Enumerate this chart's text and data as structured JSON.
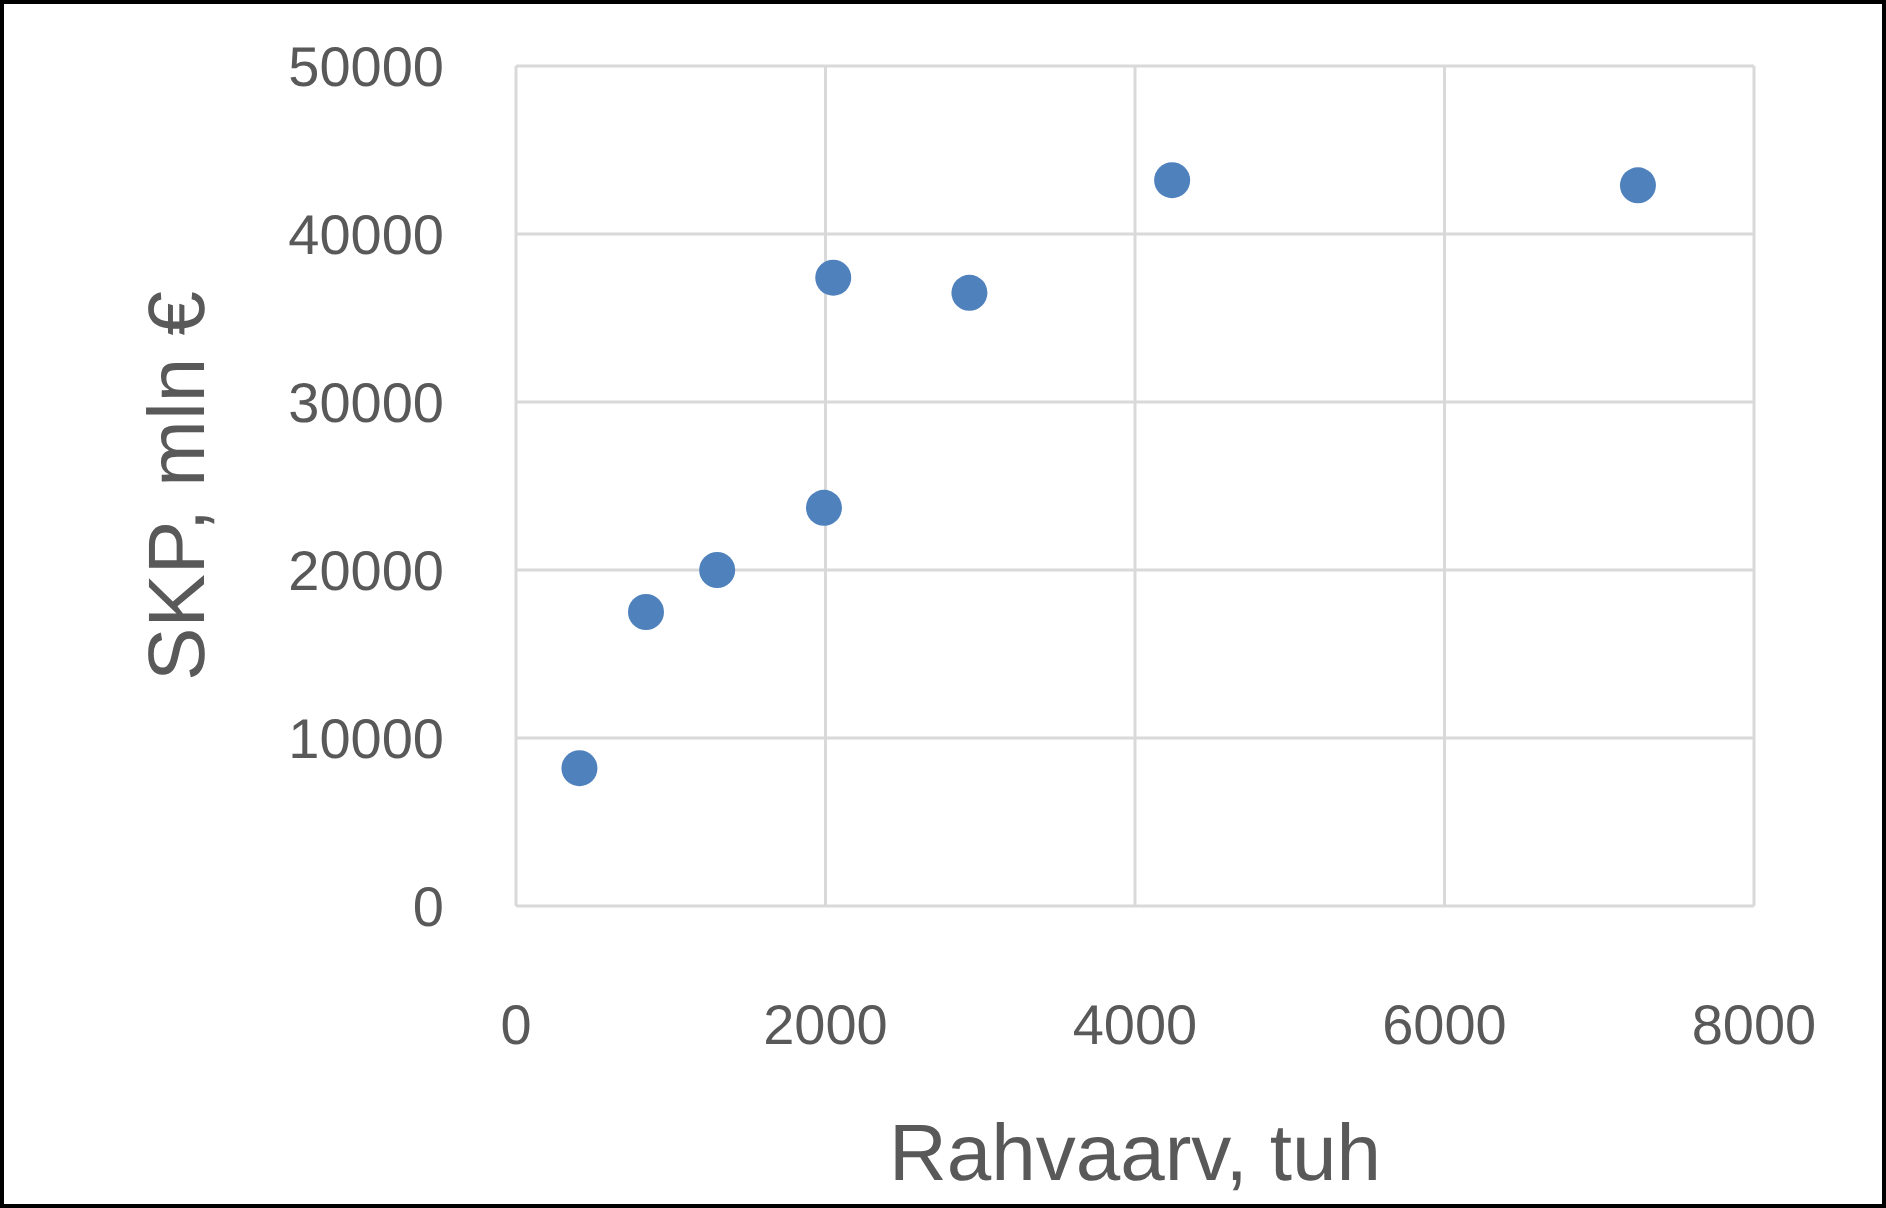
{
  "chart_data": {
    "type": "scatter",
    "xlabel": "Rahvaarv, tuh",
    "ylabel": "SKP, mln €",
    "x": [
      410,
      840,
      1300,
      1990,
      2050,
      2930,
      4240,
      7250
    ],
    "values": [
      8200,
      17500,
      20000,
      23700,
      37400,
      36500,
      43200,
      42900
    ],
    "color": "#4f81bd",
    "marker": "circle",
    "xlim": [
      0,
      8000
    ],
    "xticks": [
      0,
      2000,
      4000,
      6000,
      8000
    ],
    "ylim": [
      0,
      50000
    ],
    "yticks": [
      0,
      10000,
      20000,
      30000,
      40000,
      50000
    ],
    "grid": true
  }
}
